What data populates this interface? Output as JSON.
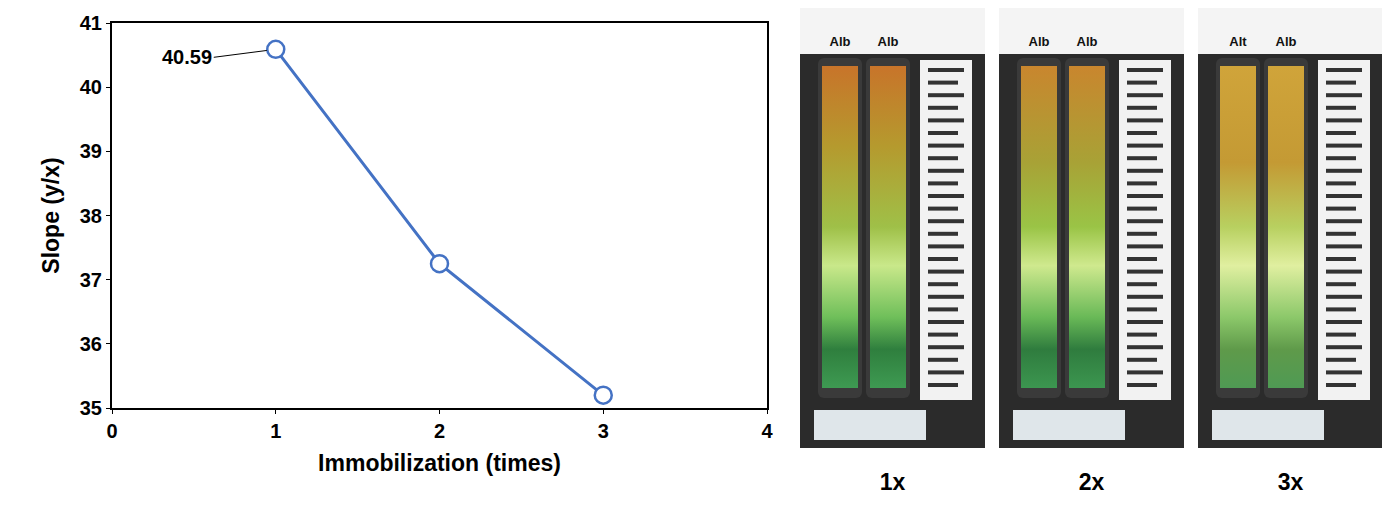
{
  "chart_data": {
    "type": "line",
    "x": [
      1,
      2,
      3
    ],
    "values": [
      40.59,
      37.25,
      35.2
    ],
    "color": "#4472c4",
    "marker": "open circle",
    "xlabel": "Immobilization (times)",
    "ylabel": "Slope (y/x)",
    "xlim": [
      0,
      4
    ],
    "xticks": [
      0,
      1,
      2,
      3,
      4
    ],
    "ylim": [
      35,
      41
    ],
    "yticks": [
      35,
      36,
      37,
      38,
      39,
      40,
      41
    ],
    "grid": false,
    "annotations": [
      {
        "x": 1,
        "y": 40.59,
        "text": "40.59"
      }
    ]
  },
  "photos": [
    {
      "caption": "1x",
      "strip_labels": [
        "Alb",
        "Alb"
      ]
    },
    {
      "caption": "2x",
      "strip_labels": [
        "Alb",
        "Alb"
      ]
    },
    {
      "caption": "3x",
      "strip_labels": [
        "Alt",
        "Alb"
      ]
    }
  ]
}
